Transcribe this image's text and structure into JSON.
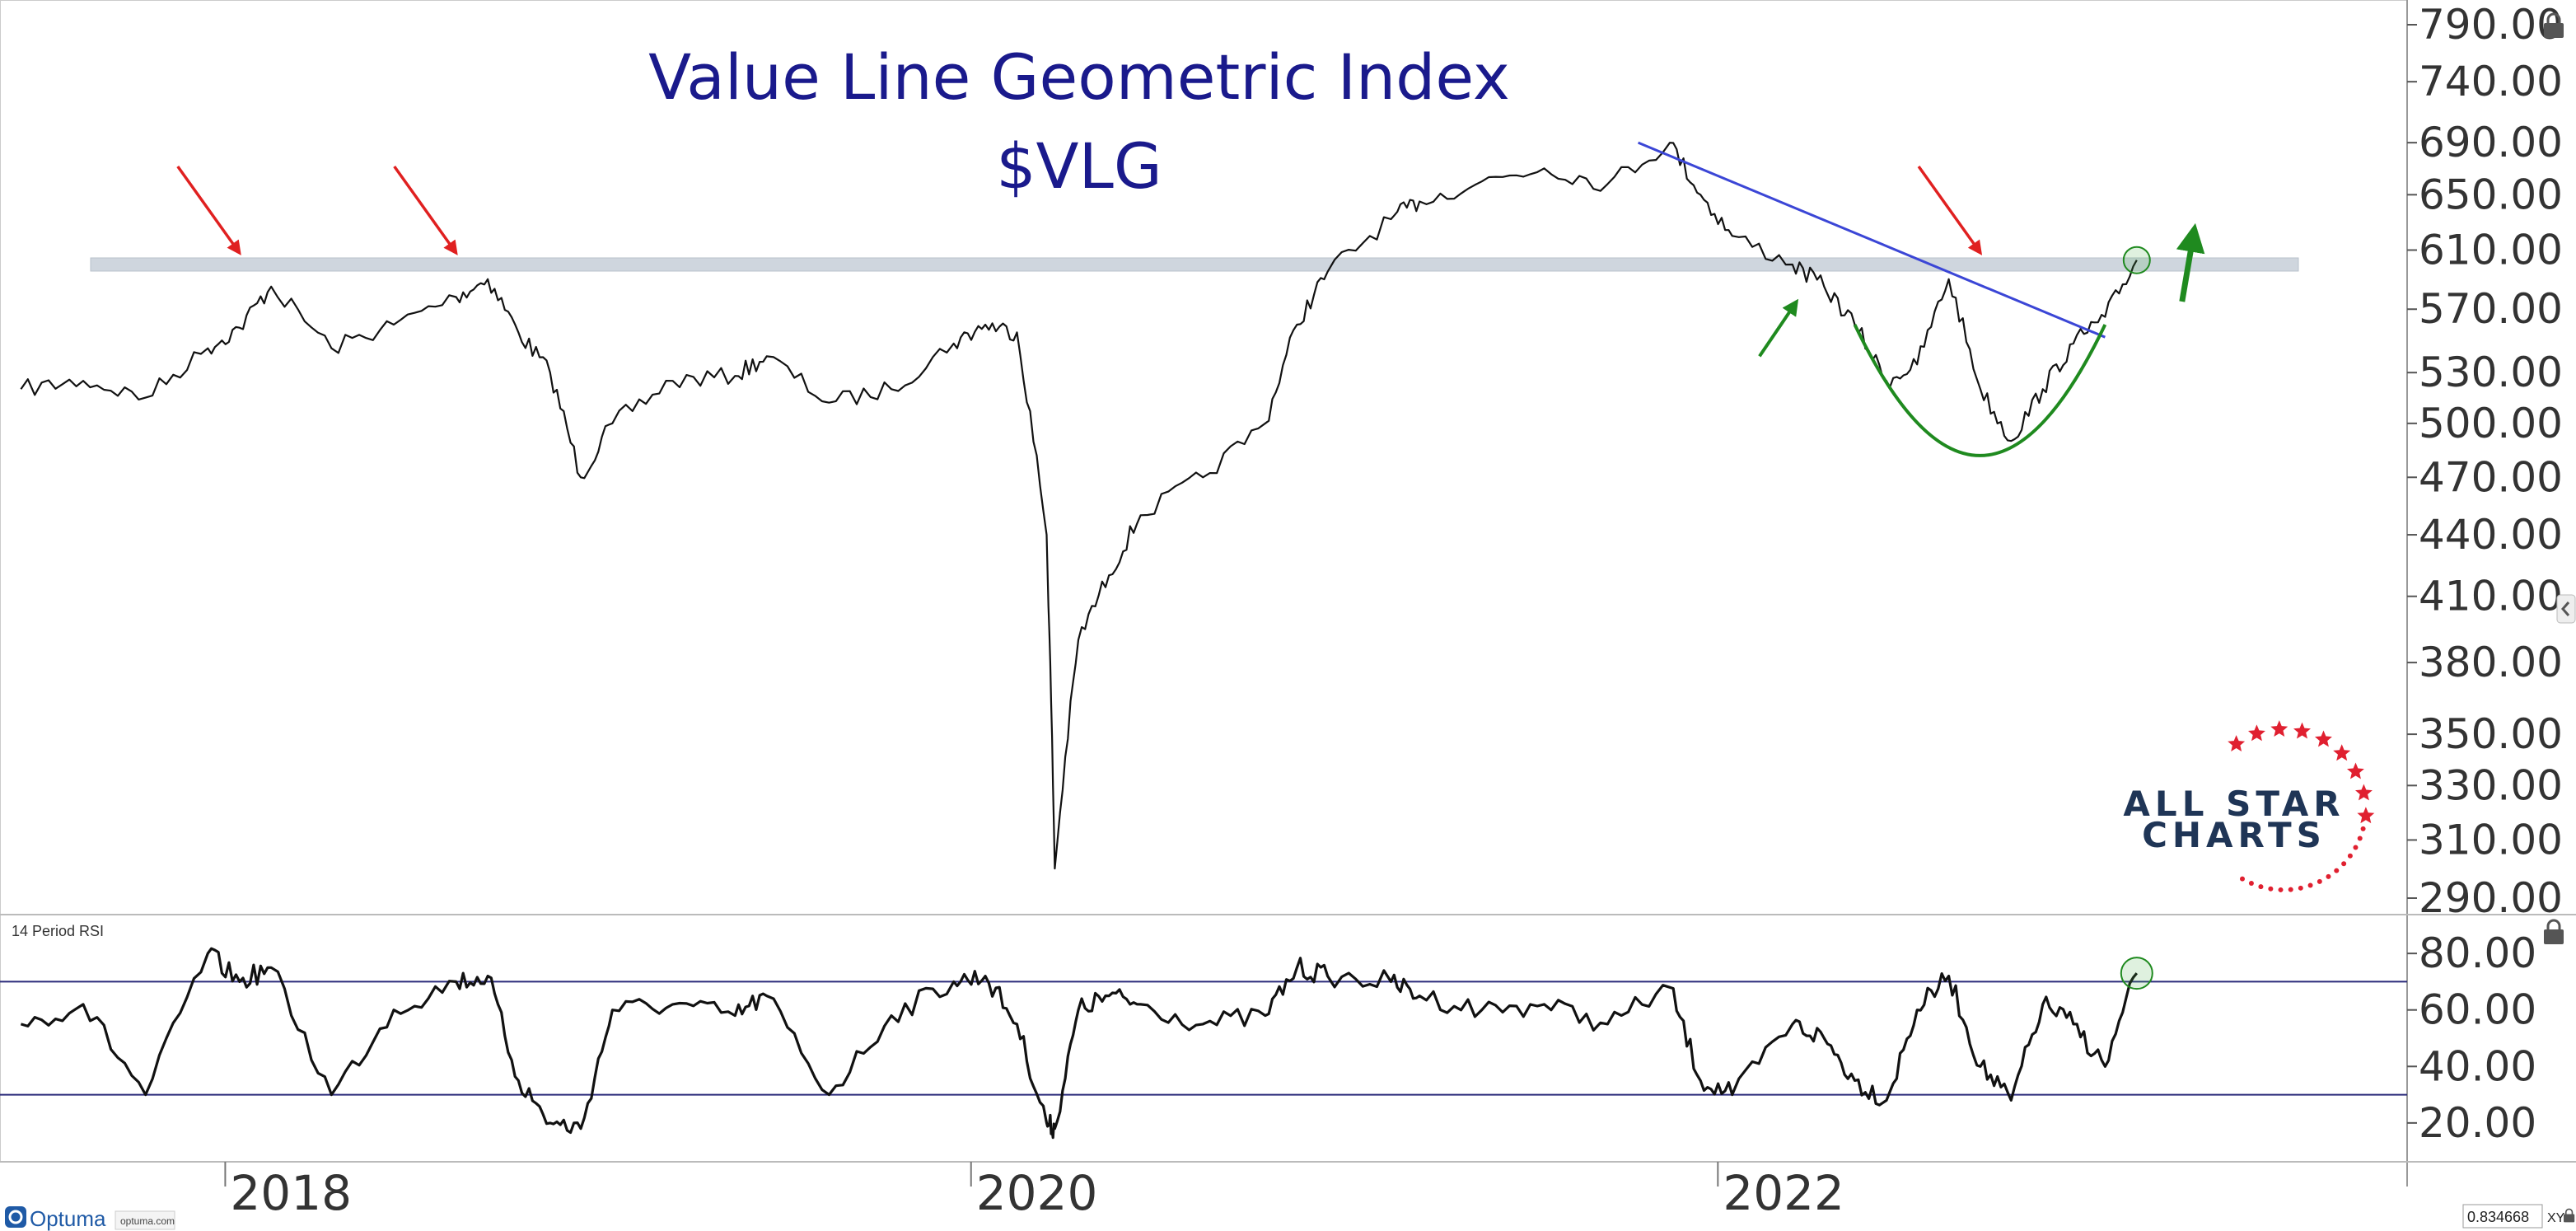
{
  "app": {
    "brand": "Optuma",
    "brand_url": "optuma.com",
    "scale_readout": "0.834668",
    "scale_mode": "XY",
    "colors": {
      "price_line": "#111111",
      "title": "#1a1a8c",
      "resistance_band": "#cfd6de",
      "trendline": "#3b46d6",
      "up_arrow": "#1f8a1f",
      "down_arrow": "#e02020",
      "cup_arc": "#1f8a1f",
      "logo_navy": "#1f3556",
      "logo_red": "#e02030",
      "rsi_ref_line": "#2a2a7a"
    },
    "icons": [
      "lock-icon",
      "chevron-left-icon",
      "optuma-logo-icon",
      "star-icon"
    ]
  },
  "chart_data": [
    {
      "type": "line",
      "title": "Value Line Geometric Index",
      "subtitle": "$VLG",
      "xlabel": "",
      "ylabel": "",
      "scale": "log",
      "ylim": [
        290,
        790
      ],
      "yticks": [
        "790.00",
        "740.00",
        "690.00",
        "650.00",
        "610.00",
        "570.00",
        "530.00",
        "500.00",
        "470.00",
        "440.00",
        "410.00",
        "380.00",
        "350.00",
        "330.00",
        "310.00",
        "290.00"
      ],
      "xticks": [
        "2018",
        "2020",
        "2022"
      ],
      "grid": false,
      "x": [
        "2017-06",
        "2017-08",
        "2017-10",
        "2017-12",
        "2018-01",
        "2018-02",
        "2018-04",
        "2018-06",
        "2018-08",
        "2018-09",
        "2018-10",
        "2018-11",
        "2018-12",
        "2019-01",
        "2019-03",
        "2019-05",
        "2019-06",
        "2019-08",
        "2019-10",
        "2019-12",
        "2020-01",
        "2020-02",
        "2020-03",
        "2020-03-23",
        "2020-04",
        "2020-05",
        "2020-06",
        "2020-08",
        "2020-10",
        "2020-11",
        "2020-12",
        "2021-02",
        "2021-03",
        "2021-05",
        "2021-07",
        "2021-09",
        "2021-11",
        "2021-12",
        "2022-01",
        "2022-03",
        "2022-04",
        "2022-05",
        "2022-06",
        "2022-07",
        "2022-08",
        "2022-09",
        "2022-10",
        "2022-11",
        "2022-12",
        "2023-01",
        "2023-02"
      ],
      "values": [
        520,
        525,
        515,
        545,
        558,
        585,
        545,
        560,
        578,
        590,
        555,
        530,
        470,
        500,
        525,
        528,
        540,
        512,
        520,
        548,
        560,
        555,
        440,
        300,
        390,
        420,
        450,
        470,
        500,
        560,
        595,
        632,
        645,
        660,
        670,
        658,
        690,
        650,
        620,
        600,
        585,
        560,
        525,
        535,
        590,
        520,
        490,
        520,
        548,
        565,
        603
      ],
      "annotations": {
        "resistance_level": 600,
        "down_arrows": [
          "2018-01",
          "2018-08",
          "2022-09"
        ],
        "up_arrows": [
          "2022-03",
          "2023-02"
        ],
        "trendline": {
          "from": [
            "2021-10",
            690
          ],
          "to": [
            "2023-01",
            552
          ]
        },
        "cup_arc": {
          "from": "2022-05",
          "to": "2023-01",
          "bottom": 480
        },
        "circle_marker": [
          "2023-02",
          603
        ]
      }
    },
    {
      "type": "line",
      "title": "14 Period RSI",
      "ylim": [
        15,
        85
      ],
      "yticks": [
        "80.00",
        "60.00",
        "40.00",
        "20.00"
      ],
      "reference_lines": [
        70,
        30
      ],
      "x": [
        "2017-06",
        "2017-08",
        "2017-10",
        "2017-12",
        "2018-01",
        "2018-02",
        "2018-04",
        "2018-06",
        "2018-08",
        "2018-09",
        "2018-10",
        "2018-11",
        "2018-12",
        "2019-01",
        "2019-03",
        "2019-05",
        "2019-06",
        "2019-08",
        "2019-10",
        "2019-12",
        "2020-01",
        "2020-02",
        "2020-03",
        "2020-03-23",
        "2020-04",
        "2020-05",
        "2020-06",
        "2020-08",
        "2020-10",
        "2020-11",
        "2020-12",
        "2021-02",
        "2021-03",
        "2021-05",
        "2021-07",
        "2021-09",
        "2021-11",
        "2021-12",
        "2022-01",
        "2022-03",
        "2022-04",
        "2022-05",
        "2022-06",
        "2022-07",
        "2022-08",
        "2022-09",
        "2022-10",
        "2022-11",
        "2022-12",
        "2023-01",
        "2023-02"
      ],
      "values": [
        55,
        62,
        30,
        80,
        70,
        75,
        30,
        60,
        70,
        72,
        35,
        20,
        18,
        60,
        62,
        58,
        65,
        30,
        58,
        70,
        72,
        55,
        20,
        18,
        60,
        65,
        62,
        55,
        58,
        75,
        72,
        70,
        65,
        60,
        62,
        55,
        68,
        35,
        30,
        55,
        50,
        35,
        28,
        60,
        72,
        40,
        28,
        62,
        55,
        40,
        73
      ],
      "annotations": {
        "circle_marker": [
          "2023-02",
          73
        ]
      }
    }
  ]
}
